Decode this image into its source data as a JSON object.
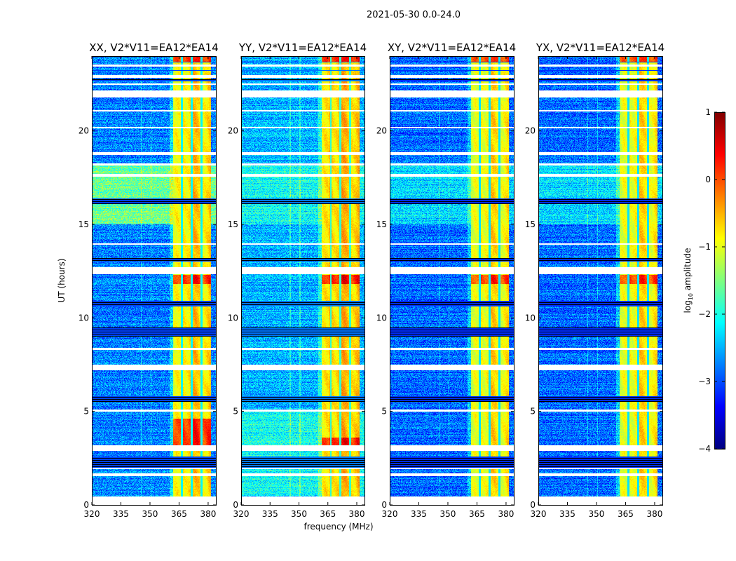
{
  "suptitle": "2021-05-30 0.0-24.0",
  "colors": {
    "frame": "#000000",
    "flagged": "#ffffff"
  },
  "chart_data": {
    "type": "heatmap",
    "title": "2021-05-30 0.0-24.0",
    "xlabel": "frequency (MHz)",
    "ylabel": "UT (hours)",
    "xlim": [
      320,
      384
    ],
    "ylim": [
      0,
      24
    ],
    "xticks": [
      "320",
      "335",
      "350",
      "365",
      "380"
    ],
    "xtick_values": [
      320,
      335,
      350,
      365,
      380
    ],
    "yticks": [
      "0",
      "5",
      "10",
      "15",
      "20"
    ],
    "ytick_values": [
      0,
      5,
      10,
      15,
      20
    ],
    "colormap": "jet",
    "colorbar": {
      "label_main": "log",
      "label_sub": "10",
      "label_rest": " amplitude",
      "range": [
        -4,
        1
      ],
      "ticks": [
        "1",
        "0",
        "−1",
        "−2",
        "−3",
        "−4"
      ],
      "tick_values": [
        1,
        0,
        -1,
        -2,
        -3,
        -4
      ]
    },
    "rfi_band_MHz": [
      362,
      381.5
    ],
    "rfi_subband_gaps_MHz": [
      366.5,
      371.5,
      376.5
    ],
    "flagged_hours": [
      [
        0,
        0.45
      ],
      [
        1.55,
        1.7
      ],
      [
        1.9,
        2.0
      ],
      [
        2.9,
        3.2
      ],
      [
        5.0,
        5.1
      ],
      [
        7.2,
        7.5
      ],
      [
        8.3,
        8.4
      ],
      [
        12.35,
        12.7
      ],
      [
        13.9,
        14.0
      ],
      [
        17.55,
        17.7
      ],
      [
        18.15,
        18.25
      ],
      [
        18.7,
        18.85
      ],
      [
        20.15,
        20.22
      ],
      [
        21.05,
        21.12
      ],
      [
        21.8,
        22.15
      ],
      [
        22.45,
        22.55
      ],
      [
        22.85,
        23.0
      ],
      [
        23.45,
        23.55
      ]
    ],
    "blank_hours": [
      [
        2.0,
        2.6
      ],
      [
        5.5,
        5.8
      ],
      [
        9.0,
        9.5
      ],
      [
        10.6,
        10.9
      ],
      [
        13.0,
        13.2
      ],
      [
        16.1,
        16.4
      ],
      [
        22.65,
        22.75
      ],
      [
        23.2,
        23.25
      ],
      [
        23.65,
        23.7
      ]
    ],
    "panels": [
      {
        "title": "XX, V2*V11=EA12*EA14",
        "background_log_amp": -2.75,
        "band_log_amp": -0.7,
        "elevated_hours": [
          [
            15.0,
            18.2
          ]
        ],
        "elevated_log_amp": -1.6,
        "strong_hours": [
          [
            3.2,
            4.6
          ],
          [
            11.8,
            12.3
          ],
          [
            23.7,
            24
          ]
        ]
      },
      {
        "title": "YY, V2*V11=EA12*EA14",
        "background_log_amp": -2.5,
        "band_log_amp": -0.6,
        "elevated_hours": [
          [
            15.0,
            18.2
          ],
          [
            0.5,
            5.0
          ]
        ],
        "elevated_log_amp": -2.05,
        "strong_hours": [
          [
            3.2,
            3.6
          ],
          [
            11.8,
            12.3
          ],
          [
            23.7,
            24
          ]
        ]
      },
      {
        "title": "XY, V2*V11=EA12*EA14",
        "background_log_amp": -2.85,
        "band_log_amp": -0.8,
        "elevated_hours": [
          [
            15.0,
            18.2
          ]
        ],
        "elevated_log_amp": -2.3,
        "strong_hours": [
          [
            11.8,
            12.3
          ],
          [
            23.7,
            24
          ]
        ]
      },
      {
        "title": "YX, V2*V11=EA12*EA14",
        "background_log_amp": -2.85,
        "band_log_amp": -0.8,
        "elevated_hours": [
          [
            15.0,
            18.2
          ]
        ],
        "elevated_log_amp": -2.3,
        "strong_hours": [
          [
            11.8,
            12.3
          ],
          [
            23.7,
            24
          ]
        ]
      }
    ]
  }
}
